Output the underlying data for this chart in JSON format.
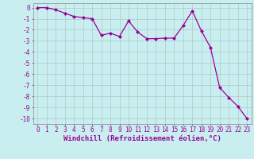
{
  "x": [
    0,
    1,
    2,
    3,
    4,
    5,
    6,
    7,
    8,
    9,
    10,
    11,
    12,
    13,
    14,
    15,
    16,
    17,
    18,
    19,
    20,
    21,
    22,
    23
  ],
  "y": [
    0,
    0,
    -0.2,
    -0.5,
    -0.8,
    -0.9,
    -1.0,
    -2.5,
    -2.3,
    -2.6,
    -1.2,
    -2.2,
    -2.8,
    -2.8,
    -2.75,
    -2.75,
    -1.6,
    -0.3,
    -2.1,
    -3.6,
    -7.2,
    -8.1,
    -8.9,
    -10.0
  ],
  "line_color": "#990099",
  "marker": "D",
  "markersize": 2.0,
  "linewidth": 0.9,
  "xlabel": "Windchill (Refroidissement éolien,°C)",
  "xlabel_color": "#990099",
  "xlabel_fontsize": 6.5,
  "xtick_labels": [
    "0",
    "1",
    "2",
    "3",
    "4",
    "5",
    "6",
    "7",
    "8",
    "9",
    "10",
    "11",
    "12",
    "13",
    "14",
    "15",
    "16",
    "17",
    "18",
    "19",
    "20",
    "21",
    "22",
    "23"
  ],
  "ytick_vals": [
    0,
    -1,
    -2,
    -3,
    -4,
    -5,
    -6,
    -7,
    -8,
    -9,
    -10
  ],
  "ytick_labels": [
    "0",
    "-1",
    "-2",
    "-3",
    "-4",
    "-5",
    "-6",
    "-7",
    "-8",
    "-9",
    "-10"
  ],
  "ylim": [
    -10.5,
    0.4
  ],
  "xlim": [
    -0.5,
    23.5
  ],
  "bg_color": "#c8eef0",
  "grid_color": "#b0c8c8",
  "tick_color": "#990099",
  "tick_fontsize": 5.5,
  "spine_color": "#888888"
}
